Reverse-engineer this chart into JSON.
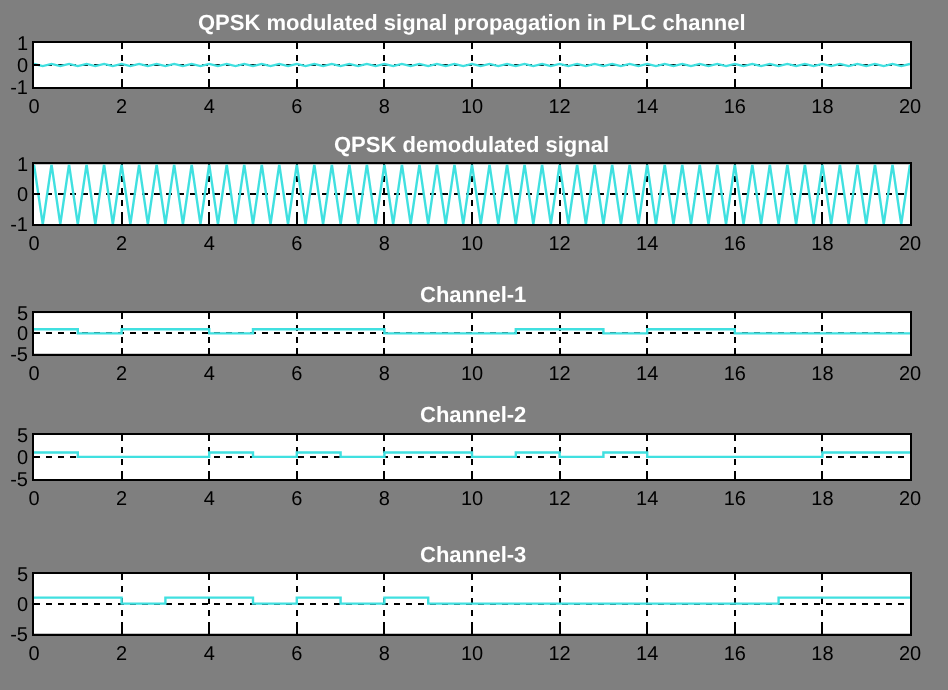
{
  "chart_data": [
    {
      "type": "line",
      "title": "QPSK modulated signal propagation in PLC channel",
      "xlim": [
        0,
        20
      ],
      "xticks": [
        0,
        2,
        4,
        6,
        8,
        10,
        12,
        14,
        16,
        18,
        20
      ],
      "ylim": [
        -1,
        1
      ],
      "yticks": [
        -1,
        0,
        1
      ],
      "grid": true,
      "x": [
        0,
        0.2,
        0.4,
        0.6,
        0.8,
        1,
        1.2,
        1.4,
        1.6,
        1.8,
        2,
        2.2,
        2.4,
        2.6,
        2.8,
        3,
        3.2,
        3.4,
        3.6,
        3.8,
        4,
        4.2,
        4.4,
        4.6,
        4.8,
        5,
        5.2,
        5.4,
        5.6,
        5.8,
        6,
        6.2,
        6.4,
        6.6,
        6.8,
        7,
        7.2,
        7.4,
        7.6,
        7.8,
        8,
        8.2,
        8.4,
        8.6,
        8.8,
        9,
        9.2,
        9.4,
        9.6,
        9.8,
        10,
        10.2,
        10.4,
        10.6,
        10.8,
        11,
        11.2,
        11.4,
        11.6,
        11.8,
        12,
        12.2,
        12.4,
        12.6,
        12.8,
        13,
        13.2,
        13.4,
        13.6,
        13.8,
        14,
        14.2,
        14.4,
        14.6,
        14.8,
        15,
        15.2,
        15.4,
        15.6,
        15.8,
        16,
        16.2,
        16.4,
        16.6,
        16.8,
        17,
        17.2,
        17.4,
        17.6,
        17.8,
        18,
        18.2,
        18.4,
        18.6,
        18.8,
        19,
        19.2,
        19.4,
        19.6,
        19.8,
        20
      ],
      "series": [
        {
          "color": "#40e0e0",
          "values": [
            0.05,
            -0.05,
            0.05,
            -0.05,
            0.05,
            -0.05,
            0.05,
            -0.05,
            0.05,
            -0.05,
            0.05,
            -0.05,
            0.05,
            -0.05,
            0.05,
            -0.05,
            0.05,
            -0.05,
            0.05,
            -0.05,
            0.05,
            -0.05,
            0.05,
            -0.05,
            0.05,
            -0.05,
            0.05,
            -0.05,
            0.05,
            -0.05,
            0.05,
            -0.05,
            0.05,
            -0.05,
            0.05,
            -0.05,
            0.05,
            -0.05,
            0.05,
            -0.05,
            0.05,
            -0.05,
            0.05,
            -0.05,
            0.05,
            -0.05,
            0.05,
            -0.05,
            0.05,
            -0.05,
            0.05,
            -0.05,
            0.05,
            -0.05,
            0.05,
            -0.05,
            0.05,
            -0.05,
            0.05,
            -0.05,
            0.05,
            -0.05,
            0.05,
            -0.05,
            0.05,
            -0.05,
            0.05,
            -0.05,
            0.05,
            -0.05,
            0.05,
            -0.05,
            0.05,
            -0.05,
            0.05,
            -0.05,
            0.05,
            -0.05,
            0.05,
            -0.05,
            0.05,
            -0.05,
            0.05,
            -0.05,
            0.05,
            -0.05,
            0.05,
            -0.05,
            0.05,
            -0.05,
            0.05,
            -0.05,
            0.05,
            -0.05,
            0.05,
            -0.05,
            0.05,
            -0.05,
            0.05,
            -0.05,
            0.05
          ]
        }
      ]
    },
    {
      "type": "line",
      "title": "QPSK demodulated signal",
      "xlim": [
        0,
        20
      ],
      "xticks": [
        0,
        2,
        4,
        6,
        8,
        10,
        12,
        14,
        16,
        18,
        20
      ],
      "ylim": [
        -1,
        1
      ],
      "yticks": [
        -1,
        0,
        1
      ],
      "grid": true,
      "x": [
        0,
        0.2,
        0.4,
        0.6,
        0.8,
        1,
        1.2,
        1.4,
        1.6,
        1.8,
        2,
        2.2,
        2.4,
        2.6,
        2.8,
        3,
        3.2,
        3.4,
        3.6,
        3.8,
        4,
        4.2,
        4.4,
        4.6,
        4.8,
        5,
        5.2,
        5.4,
        5.6,
        5.8,
        6,
        6.2,
        6.4,
        6.6,
        6.8,
        7,
        7.2,
        7.4,
        7.6,
        7.8,
        8,
        8.2,
        8.4,
        8.6,
        8.8,
        9,
        9.2,
        9.4,
        9.6,
        9.8,
        10,
        10.2,
        10.4,
        10.6,
        10.8,
        11,
        11.2,
        11.4,
        11.6,
        11.8,
        12,
        12.2,
        12.4,
        12.6,
        12.8,
        13,
        13.2,
        13.4,
        13.6,
        13.8,
        14,
        14.2,
        14.4,
        14.6,
        14.8,
        15,
        15.2,
        15.4,
        15.6,
        15.8,
        16,
        16.2,
        16.4,
        16.6,
        16.8,
        17,
        17.2,
        17.4,
        17.6,
        17.8,
        18,
        18.2,
        18.4,
        18.6,
        18.8,
        19,
        19.2,
        19.4,
        19.6,
        19.8,
        20
      ],
      "series": [
        {
          "color": "#40e0e0",
          "values": [
            1,
            -1,
            1,
            -1,
            1,
            -1,
            1,
            -1,
            1,
            -1,
            1,
            -1,
            1,
            -1,
            1,
            -1,
            1,
            -1,
            1,
            -1,
            1,
            -1,
            1,
            -1,
            1,
            -1,
            1,
            -1,
            1,
            -1,
            1,
            -1,
            1,
            -1,
            1,
            -1,
            1,
            -1,
            1,
            -1,
            1,
            -1,
            1,
            -1,
            1,
            -1,
            1,
            -1,
            1,
            -1,
            1,
            -1,
            1,
            -1,
            1,
            -1,
            1,
            -1,
            1,
            -1,
            1,
            -1,
            1,
            -1,
            1,
            -1,
            1,
            -1,
            1,
            -1,
            1,
            -1,
            1,
            -1,
            1,
            -1,
            1,
            -1,
            1,
            -1,
            1,
            -1,
            1,
            -1,
            1,
            -1,
            1,
            -1,
            1,
            -1,
            1,
            -1,
            1,
            -1,
            1,
            -1,
            1,
            -1,
            1,
            -1,
            1
          ]
        }
      ]
    },
    {
      "type": "step",
      "title": "Channel-1",
      "xlim": [
        0,
        20
      ],
      "xticks": [
        0,
        2,
        4,
        6,
        8,
        10,
        12,
        14,
        16,
        18,
        20
      ],
      "ylim": [
        -5,
        5
      ],
      "yticks": [
        -5,
        0,
        5
      ],
      "grid": true,
      "x": [
        0,
        1,
        2,
        3,
        4,
        5,
        6,
        7,
        8,
        9,
        10,
        11,
        12,
        13,
        14,
        15,
        16,
        17,
        18,
        19,
        20
      ],
      "series": [
        {
          "color": "#40e0e0",
          "values": [
            1,
            0,
            1,
            1,
            0,
            1,
            1,
            1,
            0,
            0,
            0,
            1,
            1,
            0,
            1,
            1,
            0,
            0,
            0,
            0,
            0
          ]
        }
      ]
    },
    {
      "type": "step",
      "title": "Channel-2",
      "xlim": [
        0,
        20
      ],
      "xticks": [
        0,
        2,
        4,
        6,
        8,
        10,
        12,
        14,
        16,
        18,
        20
      ],
      "ylim": [
        -5,
        5
      ],
      "yticks": [
        -5,
        0,
        5
      ],
      "grid": true,
      "x": [
        0,
        1,
        2,
        3,
        4,
        5,
        6,
        7,
        8,
        9,
        10,
        11,
        12,
        13,
        14,
        15,
        16,
        17,
        18,
        19,
        20
      ],
      "series": [
        {
          "color": "#40e0e0",
          "values": [
            1,
            0,
            0,
            0,
            1,
            0,
            1,
            0,
            1,
            1,
            0,
            1,
            0,
            1,
            0,
            0,
            0,
            0,
            1,
            1,
            1
          ]
        }
      ]
    },
    {
      "type": "step",
      "title": "Channel-3",
      "xlim": [
        0,
        20
      ],
      "xticks": [
        0,
        2,
        4,
        6,
        8,
        10,
        12,
        14,
        16,
        18,
        20
      ],
      "ylim": [
        -5,
        5
      ],
      "yticks": [
        -5,
        0,
        5
      ],
      "grid": true,
      "x": [
        0,
        1,
        2,
        3,
        4,
        5,
        6,
        7,
        8,
        9,
        10,
        11,
        12,
        13,
        14,
        15,
        16,
        17,
        18,
        19,
        20
      ],
      "series": [
        {
          "color": "#40e0e0",
          "values": [
            1,
            1,
            0,
            1,
            1,
            0,
            1,
            0,
            1,
            0,
            0,
            0,
            0,
            0,
            0,
            0,
            0,
            1,
            1,
            1,
            1
          ]
        }
      ]
    }
  ]
}
